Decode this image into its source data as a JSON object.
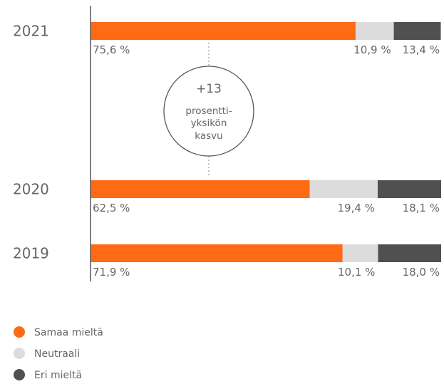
{
  "chart_data": {
    "type": "bar",
    "orientation": "horizontal",
    "stacked": true,
    "categories": [
      "2021",
      "2020",
      "2019"
    ],
    "series": [
      {
        "name": "Samaa mieltä",
        "values": [
          75.6,
          62.5,
          71.9
        ],
        "labels": [
          "75,6 %",
          "62,5 %",
          "71,9 %"
        ],
        "color": "#ff6a14"
      },
      {
        "name": "Neutraali",
        "values": [
          10.9,
          19.4,
          10.1
        ],
        "labels": [
          "10,9 %",
          "19,4 %",
          "10,1 %"
        ],
        "color": "#dcdcdc"
      },
      {
        "name": "Eri mieltä",
        "values": [
          13.4,
          18.1,
          18.0
        ],
        "labels": [
          "13,4 %",
          "18,1 %",
          "18,0 %"
        ],
        "color": "#505050"
      }
    ],
    "xlim": [
      0,
      100
    ],
    "grid": false,
    "legend_position": "bottom-left",
    "annotation": {
      "line1": "+13",
      "line2": "prosentti-",
      "line3": "yksikön",
      "line4": "kasvu"
    }
  },
  "colors": {
    "text": "#666666",
    "axis": "#555555",
    "dotted": "#999999",
    "circle_stroke": "#555555"
  }
}
